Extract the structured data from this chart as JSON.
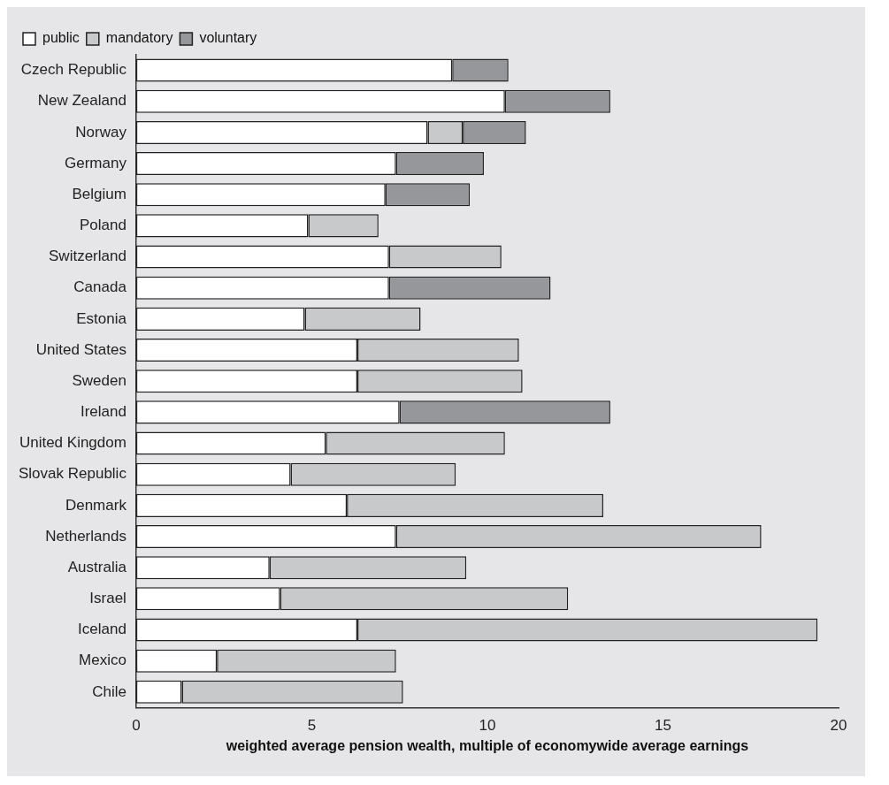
{
  "chart_data": {
    "type": "bar",
    "orientation": "horizontal",
    "stacked": true,
    "xlabel": "weighted average pension wealth, multiple of economywide average earnings",
    "categories": [
      "Czech Republic",
      "New Zealand",
      "Norway",
      "Germany",
      "Belgium",
      "Poland",
      "Switzerland",
      "Canada",
      "Estonia",
      "United States",
      "Sweden",
      "Ireland",
      "United Kingdom",
      "Slovak Republic",
      "Denmark",
      "Netherlands",
      "Australia",
      "Israel",
      "Iceland",
      "Mexico",
      "Chile"
    ],
    "series": [
      {
        "name": "public",
        "color": "#ffffff",
        "values": [
          9.0,
          10.5,
          8.3,
          7.4,
          7.1,
          4.9,
          7.2,
          7.2,
          4.8,
          6.3,
          6.3,
          7.5,
          5.4,
          4.4,
          6.0,
          7.4,
          3.8,
          4.1,
          6.3,
          2.3,
          1.3
        ]
      },
      {
        "name": "mandatory",
        "color": "#c8c9cb",
        "values": [
          null,
          null,
          1.0,
          null,
          null,
          2.0,
          3.2,
          null,
          3.3,
          4.6,
          4.7,
          null,
          5.1,
          4.7,
          7.3,
          10.4,
          5.6,
          8.2,
          13.1,
          5.1,
          6.3
        ]
      },
      {
        "name": "voluntary",
        "color": "#96979b",
        "values": [
          1.6,
          3.0,
          1.8,
          2.5,
          2.4,
          null,
          null,
          4.6,
          null,
          null,
          null,
          6.0,
          null,
          null,
          null,
          null,
          null,
          null,
          null,
          null,
          null
        ]
      }
    ],
    "xlim": [
      0,
      20
    ],
    "xticks": [
      0,
      5,
      10,
      15,
      20
    ],
    "grid": false,
    "legend": "top left"
  }
}
